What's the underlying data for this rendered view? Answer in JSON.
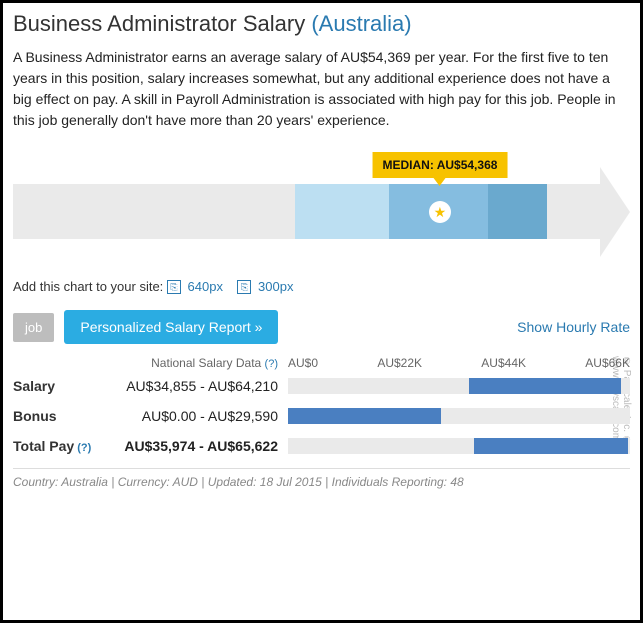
{
  "title_main": "Business Administrator Salary",
  "title_location": "(Australia)",
  "description": "A Business Administrator earns an average salary of AU$54,369 per year. For the first five to ten years in this position, salary increases somewhat, but any additional experience does not have a big effect on pay. A skill in Payroll Administration is associated with high pay for this job. People in this job generally don't have more than 20 years' experience.",
  "arrow_chart": {
    "segments": [
      {
        "left_pct": 48,
        "width_pct": 16,
        "color": "#bcdff2"
      },
      {
        "left_pct": 64,
        "width_pct": 17,
        "color": "#85bde0"
      },
      {
        "left_pct": 81,
        "width_pct": 10,
        "color": "#6aa9ce"
      }
    ],
    "median_pos_pct": 72,
    "median_label": "MEDIAN: AU$54,368"
  },
  "embed": {
    "prefix": "Add this chart to your site:",
    "opt1": "640px",
    "opt2": "300px"
  },
  "buttons": {
    "job": "job",
    "report": "Personalized Salary Report »"
  },
  "hourly_link": "Show Hourly Rate",
  "data_header_label": "National Salary Data",
  "axis": {
    "max": 66,
    "ticks": [
      "AU$0",
      "AU$22K",
      "AU$44K",
      "AU$66K"
    ]
  },
  "rows": [
    {
      "label": "Salary",
      "value": "AU$34,855 - AU$64,210",
      "bold": false,
      "bar": {
        "start": 34.855,
        "end": 64.21,
        "color": "#4a7fc1"
      }
    },
    {
      "label": "Bonus",
      "value": "AU$0.00 - AU$29,590",
      "bold": false,
      "bar": {
        "start": 0,
        "end": 29.59,
        "color": "#4a7fc1"
      }
    },
    {
      "label": "Total Pay",
      "value": "AU$35,974 - AU$65,622",
      "bold": true,
      "bar": {
        "start": 35.974,
        "end": 65.622,
        "color": "#4a7fc1"
      },
      "help": true
    }
  ],
  "footer": "Country: Australia | Currency: AUD | Updated: 18 Jul 2015 | Individuals Reporting: 48",
  "copyright": "© Payscale, Inc. © www.payscale.com"
}
